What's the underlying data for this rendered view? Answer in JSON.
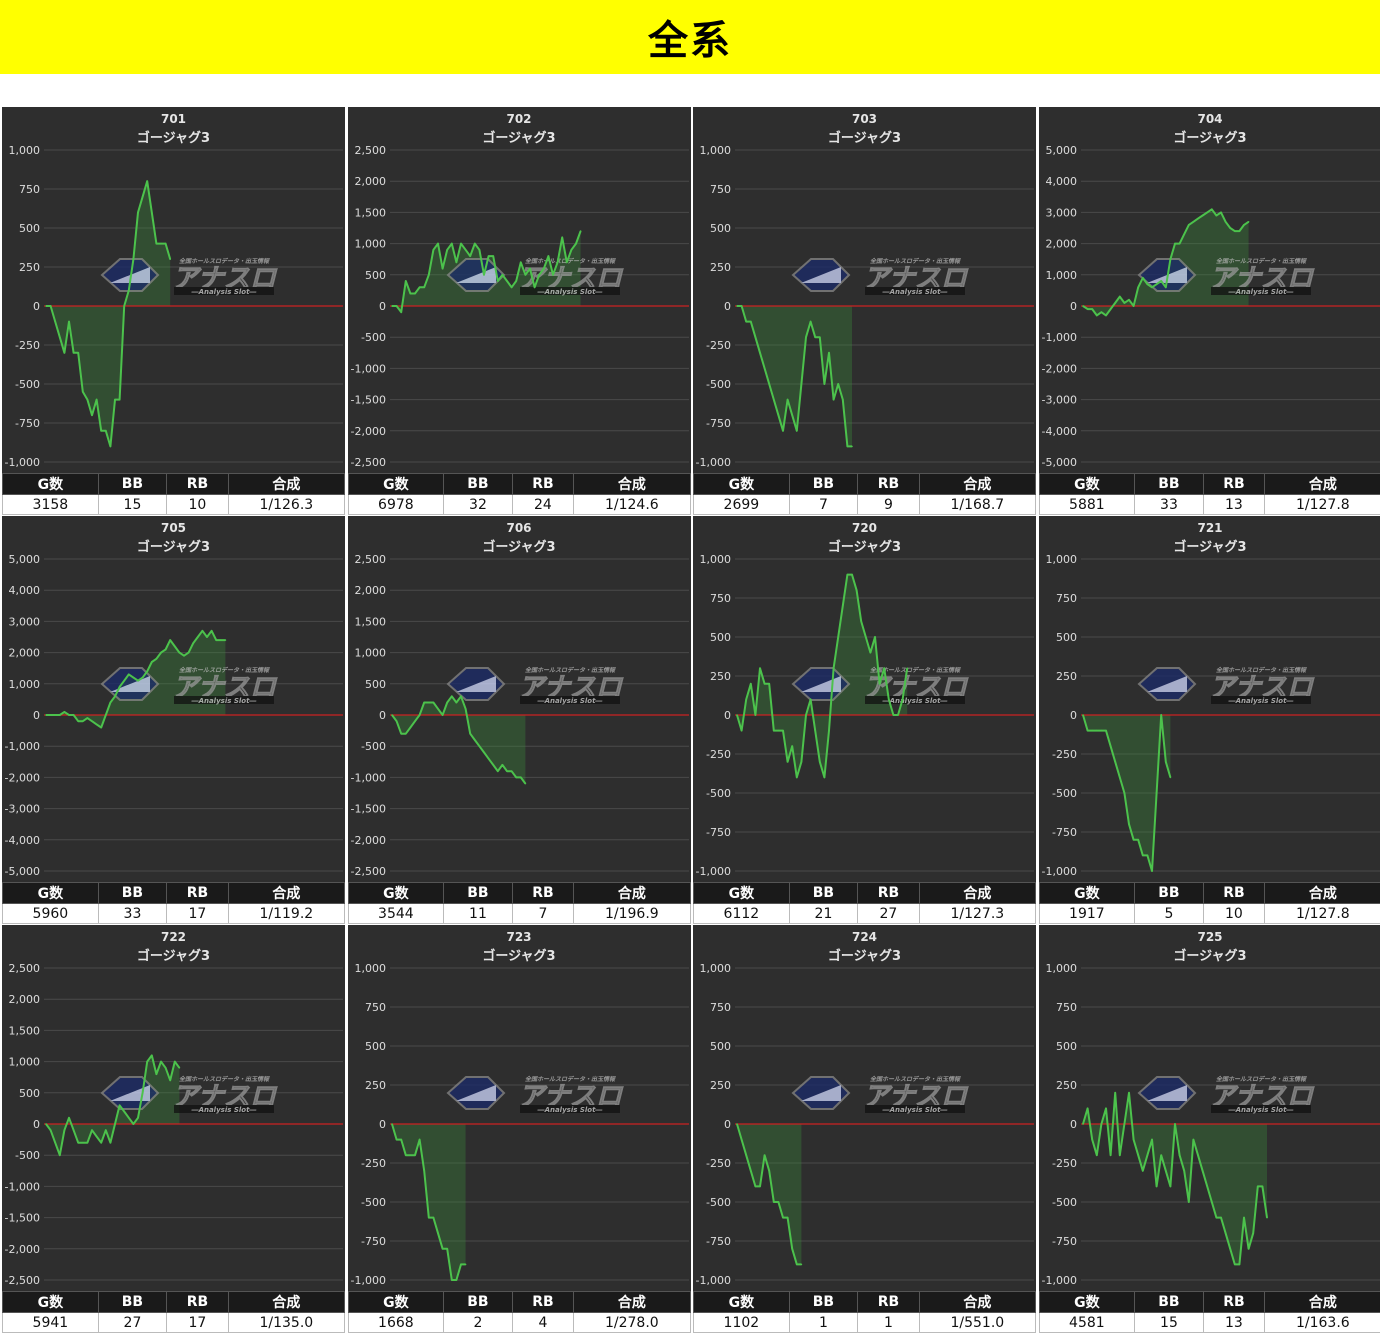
{
  "page": {
    "title": "全系"
  },
  "stats_headers": {
    "games": "G数",
    "bb": "BB",
    "rb": "RB",
    "combined": "合成"
  },
  "watermark": {
    "logo_text": "アナスロ",
    "tagline": "―Analysis Slot―",
    "top_text": "全国ホールスロデータ・出玉情報"
  },
  "colors": {
    "line": "#4cc24c",
    "fill": "#3a8a3a",
    "zero_line": "#cc2222",
    "panel_bg": "#2e2e2e",
    "grid": "#4a4a4a",
    "banner": "#ffff00"
  },
  "chart_data": [
    {
      "type": "area",
      "title": "701",
      "subtitle": "ゴージャグ3",
      "ylim": [
        -1000,
        1000
      ],
      "ticks": [
        -1000,
        -750,
        -500,
        -250,
        0,
        250,
        500,
        750,
        1000
      ],
      "tick_labels": [
        "-1,000",
        "-750",
        "-500",
        "-250",
        "0",
        "250",
        "500",
        "750",
        "1,000"
      ],
      "values": [
        0,
        0,
        -100,
        -200,
        -300,
        -100,
        -300,
        -300,
        -550,
        -600,
        -700,
        -600,
        -800,
        -800,
        -900,
        -600,
        -600,
        0,
        100,
        300,
        600,
        700,
        800,
        600,
        400,
        400,
        400,
        300
      ],
      "stats": {
        "games": "3158",
        "bb": "15",
        "rb": "10",
        "combined": "1/126.3"
      }
    },
    {
      "type": "area",
      "title": "702",
      "subtitle": "ゴージャグ3",
      "ylim": [
        -2500,
        2500
      ],
      "ticks": [
        -2500,
        -2000,
        -1500,
        -1000,
        -500,
        0,
        500,
        1000,
        1500,
        2000,
        2500
      ],
      "tick_labels": [
        "-2,500",
        "-2,000",
        "-1,500",
        "-1,000",
        "-500",
        "0",
        "500",
        "1,000",
        "1,500",
        "2,000",
        "2,500"
      ],
      "values": [
        0,
        0,
        -100,
        400,
        200,
        200,
        300,
        300,
        500,
        900,
        1000,
        600,
        900,
        1000,
        700,
        1000,
        900,
        800,
        1000,
        900,
        500,
        800,
        800,
        400,
        500,
        400,
        300,
        400,
        700,
        500,
        600,
        300,
        500,
        600,
        800,
        500,
        700,
        1100,
        700,
        900,
        1000,
        1200
      ],
      "stats": {
        "games": "6978",
        "bb": "32",
        "rb": "24",
        "combined": "1/124.6"
      }
    },
    {
      "type": "area",
      "title": "703",
      "subtitle": "ゴージャグ3",
      "ylim": [
        -1000,
        1000
      ],
      "ticks": [
        -1000,
        -750,
        -500,
        -250,
        0,
        250,
        500,
        750,
        1000
      ],
      "tick_labels": [
        "-1,000",
        "-750",
        "-500",
        "-250",
        "0",
        "250",
        "500",
        "750",
        "1,000"
      ],
      "values": [
        0,
        0,
        -100,
        -100,
        -200,
        -300,
        -400,
        -500,
        -600,
        -700,
        -800,
        -600,
        -700,
        -800,
        -500,
        -200,
        -100,
        -200,
        -200,
        -500,
        -300,
        -600,
        -500,
        -600,
        -900,
        -900
      ],
      "stats": {
        "games": "2699",
        "bb": "7",
        "rb": "9",
        "combined": "1/168.7"
      }
    },
    {
      "type": "area",
      "title": "704",
      "subtitle": "ゴージャグ3",
      "ylim": [
        -5000,
        5000
      ],
      "ticks": [
        -5000,
        -4000,
        -3000,
        -2000,
        -1000,
        0,
        1000,
        2000,
        3000,
        4000,
        5000
      ],
      "tick_labels": [
        "-5,000",
        "-4,000",
        "-3,000",
        "-2,000",
        "-1,000",
        "0",
        "1,000",
        "2,000",
        "3,000",
        "4,000",
        "5,000"
      ],
      "values": [
        0,
        -100,
        -100,
        -300,
        -200,
        -300,
        -100,
        100,
        300,
        100,
        200,
        0,
        600,
        900,
        700,
        600,
        700,
        800,
        600,
        1500,
        2000,
        2000,
        2300,
        2600,
        2700,
        2800,
        2900,
        3000,
        3100,
        2900,
        3000,
        2700,
        2500,
        2400,
        2400,
        2600,
        2700
      ],
      "stats": {
        "games": "5881",
        "bb": "33",
        "rb": "13",
        "combined": "1/127.8"
      }
    },
    {
      "type": "area",
      "title": "705",
      "subtitle": "ゴージャグ3",
      "ylim": [
        -5000,
        5000
      ],
      "ticks": [
        -5000,
        -4000,
        -3000,
        -2000,
        -1000,
        0,
        1000,
        2000,
        3000,
        4000,
        5000
      ],
      "tick_labels": [
        "-5,000",
        "-4,000",
        "-3,000",
        "-2,000",
        "-1,000",
        "0",
        "1,000",
        "2,000",
        "3,000",
        "4,000",
        "5,000"
      ],
      "values": [
        0,
        0,
        0,
        0,
        100,
        0,
        0,
        -200,
        -200,
        -100,
        -200,
        -300,
        -400,
        0,
        400,
        600,
        900,
        1100,
        1300,
        1200,
        1100,
        1200,
        1400,
        1700,
        1800,
        2000,
        2100,
        2400,
        2200,
        2000,
        1900,
        2000,
        2300,
        2500,
        2700,
        2500,
        2700,
        2400,
        2400,
        2400
      ],
      "stats": {
        "games": "5960",
        "bb": "33",
        "rb": "17",
        "combined": "1/119.2"
      }
    },
    {
      "type": "area",
      "title": "706",
      "subtitle": "ゴージャグ3",
      "ylim": [
        -2500,
        2500
      ],
      "ticks": [
        -2500,
        -2000,
        -1500,
        -1000,
        -500,
        0,
        500,
        1000,
        1500,
        2000,
        2500
      ],
      "tick_labels": [
        "-2,500",
        "-2,000",
        "-1,500",
        "-1,000",
        "-500",
        "0",
        "500",
        "1,000",
        "1,500",
        "2,000",
        "2,500"
      ],
      "values": [
        0,
        -100,
        -300,
        -300,
        -200,
        -100,
        0,
        200,
        200,
        200,
        100,
        0,
        200,
        300,
        200,
        300,
        100,
        -300,
        -400,
        -500,
        -600,
        -700,
        -800,
        -900,
        -800,
        -900,
        -900,
        -1000,
        -1000,
        -1100
      ],
      "stats": {
        "games": "3544",
        "bb": "11",
        "rb": "7",
        "combined": "1/196.9"
      }
    },
    {
      "type": "area",
      "title": "720",
      "subtitle": "ゴージャグ3",
      "ylim": [
        -1000,
        1000
      ],
      "ticks": [
        -1000,
        -750,
        -500,
        -250,
        0,
        250,
        500,
        750,
        1000
      ],
      "tick_labels": [
        "-1,000",
        "-750",
        "-500",
        "-250",
        "0",
        "250",
        "500",
        "750",
        "1,000"
      ],
      "values": [
        0,
        -100,
        100,
        200,
        0,
        300,
        200,
        200,
        -100,
        -100,
        -100,
        -300,
        -200,
        -400,
        -300,
        0,
        100,
        -100,
        -300,
        -400,
        -100,
        300,
        500,
        700,
        900,
        900,
        800,
        600,
        500,
        400,
        500,
        200,
        300,
        100,
        0,
        0,
        100,
        300
      ],
      "stats": {
        "games": "6112",
        "bb": "21",
        "rb": "27",
        "combined": "1/127.3"
      }
    },
    {
      "type": "area",
      "title": "721",
      "subtitle": "ゴージャグ3",
      "ylim": [
        -1000,
        1000
      ],
      "ticks": [
        -1000,
        -750,
        -500,
        -250,
        0,
        250,
        500,
        750,
        1000
      ],
      "tick_labels": [
        "-1,000",
        "-750",
        "-500",
        "-250",
        "0",
        "250",
        "500",
        "750",
        "1,000"
      ],
      "values": [
        0,
        -100,
        -100,
        -100,
        -100,
        -100,
        -200,
        -300,
        -400,
        -500,
        -700,
        -800,
        -800,
        -900,
        -900,
        -1000,
        -500,
        0,
        -300,
        -400
      ],
      "stats": {
        "games": "1917",
        "bb": "5",
        "rb": "10",
        "combined": "1/127.8"
      }
    },
    {
      "type": "area",
      "title": "722",
      "subtitle": "ゴージャグ3",
      "ylim": [
        -2500,
        2500
      ],
      "ticks": [
        -2500,
        -2000,
        -1500,
        -1000,
        -500,
        0,
        500,
        1000,
        1500,
        2000,
        2500
      ],
      "tick_labels": [
        "-2,500",
        "-2,000",
        "-1,500",
        "-1,000",
        "-500",
        "0",
        "500",
        "1,000",
        "1,500",
        "2,000",
        "2,500"
      ],
      "values": [
        0,
        -100,
        -300,
        -500,
        -100,
        100,
        -100,
        -300,
        -300,
        -300,
        -100,
        -200,
        -300,
        -100,
        -300,
        0,
        300,
        200,
        100,
        0,
        100,
        500,
        1000,
        1100,
        800,
        1000,
        900,
        700,
        1000,
        900
      ],
      "stats": {
        "games": "5941",
        "bb": "27",
        "rb": "17",
        "combined": "1/135.0"
      }
    },
    {
      "type": "area",
      "title": "723",
      "subtitle": "ゴージャグ3",
      "ylim": [
        -1000,
        1000
      ],
      "ticks": [
        -1000,
        -750,
        -500,
        -250,
        0,
        250,
        500,
        750,
        1000
      ],
      "tick_labels": [
        "-1,000",
        "-750",
        "-500",
        "-250",
        "0",
        "250",
        "500",
        "750",
        "1,000"
      ],
      "values": [
        0,
        -100,
        -100,
        -200,
        -200,
        -200,
        -100,
        -300,
        -600,
        -600,
        -700,
        -800,
        -800,
        -1000,
        -1000,
        -900,
        -900
      ],
      "stats": {
        "games": "1668",
        "bb": "2",
        "rb": "4",
        "combined": "1/278.0"
      }
    },
    {
      "type": "area",
      "title": "724",
      "subtitle": "ゴージャグ3",
      "ylim": [
        -1000,
        1000
      ],
      "ticks": [
        -1000,
        -750,
        -500,
        -250,
        0,
        250,
        500,
        750,
        1000
      ],
      "tick_labels": [
        "-1,000",
        "-750",
        "-500",
        "-250",
        "0",
        "250",
        "500",
        "750",
        "1,000"
      ],
      "values": [
        0,
        -100,
        -200,
        -300,
        -400,
        -400,
        -200,
        -300,
        -500,
        -500,
        -600,
        -600,
        -800,
        -900,
        -900
      ],
      "stats": {
        "games": "1102",
        "bb": "1",
        "rb": "1",
        "combined": "1/551.0"
      }
    },
    {
      "type": "area",
      "title": "725",
      "subtitle": "ゴージャグ3",
      "ylim": [
        -1000,
        1000
      ],
      "ticks": [
        -1000,
        -750,
        -500,
        -250,
        0,
        250,
        500,
        750,
        1000
      ],
      "tick_labels": [
        "-1,000",
        "-750",
        "-500",
        "-250",
        "0",
        "250",
        "500",
        "750",
        "1,000"
      ],
      "values": [
        0,
        100,
        -100,
        -200,
        0,
        100,
        -200,
        200,
        -200,
        0,
        200,
        -100,
        -200,
        -300,
        -200,
        -100,
        -400,
        -200,
        -300,
        -400,
        0,
        -200,
        -300,
        -500,
        -100,
        -200,
        -300,
        -400,
        -500,
        -600,
        -600,
        -700,
        -800,
        -900,
        -900,
        -600,
        -800,
        -700,
        -400,
        -400,
        -600
      ],
      "stats": {
        "games": "4581",
        "bb": "15",
        "rb": "13",
        "combined": "1/163.6"
      }
    }
  ]
}
